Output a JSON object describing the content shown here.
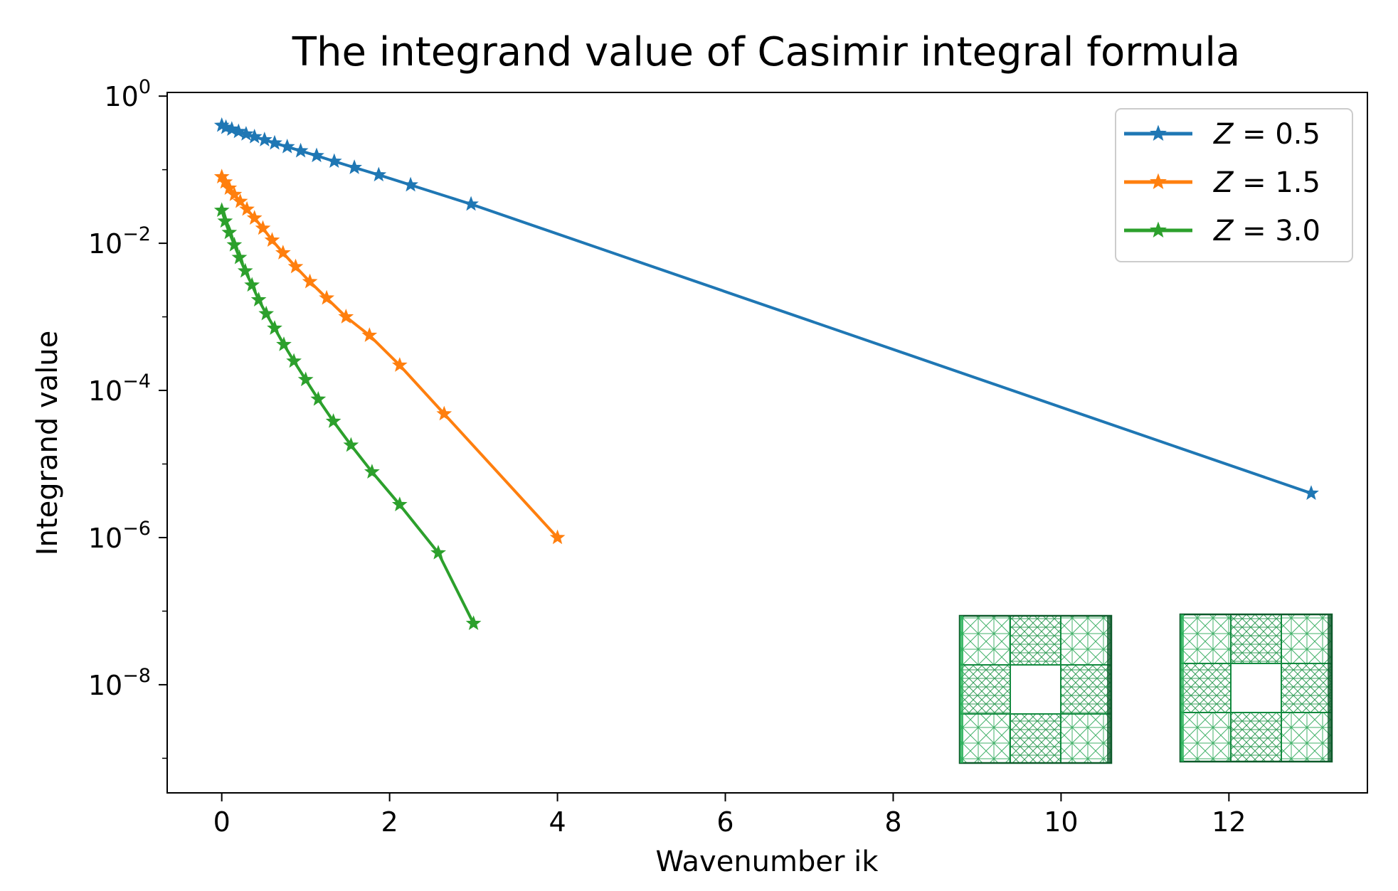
{
  "chart_data": {
    "type": "line",
    "title": "The integrand value of Casimir integral formula",
    "xlabel": "Wavenumber ik",
    "ylabel": "Integrand value",
    "y_scale": "log",
    "xlim": [
      -0.65,
      13.65
    ],
    "ylim_exp": [
      -9.47,
      0.05
    ],
    "x_ticks": [
      0,
      2,
      4,
      6,
      8,
      10,
      12
    ],
    "x_tick_labels": [
      "0",
      "2",
      "4",
      "6",
      "8",
      "10",
      "12"
    ],
    "y_ticks_exp": [
      0,
      -2,
      -4,
      -6,
      -8
    ],
    "y_tick_base": "10",
    "y_tick_exponents": [
      "0",
      "−2",
      "−4",
      "−6",
      "−8"
    ],
    "grid": false,
    "legend_position": "top-right",
    "marker": "star",
    "series": [
      {
        "name": "Z = 0.5",
        "color": "#1f77b4",
        "x": [
          0.0,
          0.05,
          0.12,
          0.2,
          0.29,
          0.39,
          0.51,
          0.63,
          0.78,
          0.94,
          1.13,
          1.34,
          1.58,
          1.87,
          2.25,
          2.97,
          12.98
        ],
        "y": [
          0.4,
          0.375,
          0.355,
          0.33,
          0.305,
          0.28,
          0.255,
          0.23,
          0.205,
          0.18,
          0.155,
          0.13,
          0.107,
          0.085,
          0.062,
          0.034,
          4e-06
        ]
      },
      {
        "name": "Z = 1.5",
        "color": "#ff7f0e",
        "x": [
          0.0,
          0.04,
          0.09,
          0.15,
          0.22,
          0.3,
          0.39,
          0.49,
          0.6,
          0.73,
          0.88,
          1.05,
          1.25,
          1.48,
          1.76,
          2.12,
          2.65,
          4.0
        ],
        "y": [
          0.08,
          0.068,
          0.056,
          0.046,
          0.037,
          0.029,
          0.022,
          0.016,
          0.011,
          0.0074,
          0.0048,
          0.003,
          0.0018,
          0.001,
          0.00056,
          0.00022,
          4.8e-05,
          1e-06
        ]
      },
      {
        "name": "Z = 3.0",
        "color": "#2ca02c",
        "x": [
          0.0,
          0.04,
          0.09,
          0.15,
          0.21,
          0.28,
          0.36,
          0.44,
          0.53,
          0.63,
          0.74,
          0.86,
          1.0,
          1.15,
          1.33,
          1.54,
          1.79,
          2.12,
          2.58,
          3.0
        ],
        "y": [
          0.028,
          0.02,
          0.014,
          0.0095,
          0.0064,
          0.0042,
          0.0027,
          0.0017,
          0.0011,
          0.0007,
          0.00042,
          0.00025,
          0.00014,
          7.6e-05,
          3.8e-05,
          1.8e-05,
          7.8e-06,
          2.8e-06,
          6.2e-07,
          6.8e-08
        ]
      }
    ]
  },
  "legend": {
    "items": [
      {
        "symbol": "Z",
        "rest": " = 0.5"
      },
      {
        "symbol": "Z",
        "rest": " = 1.5"
      },
      {
        "symbol": "Z",
        "rest": " = 3.0"
      }
    ]
  },
  "inset": {
    "icon": "mesh-structure-icon",
    "color": "#21a34f",
    "dark_color": "#0d5a2a"
  }
}
